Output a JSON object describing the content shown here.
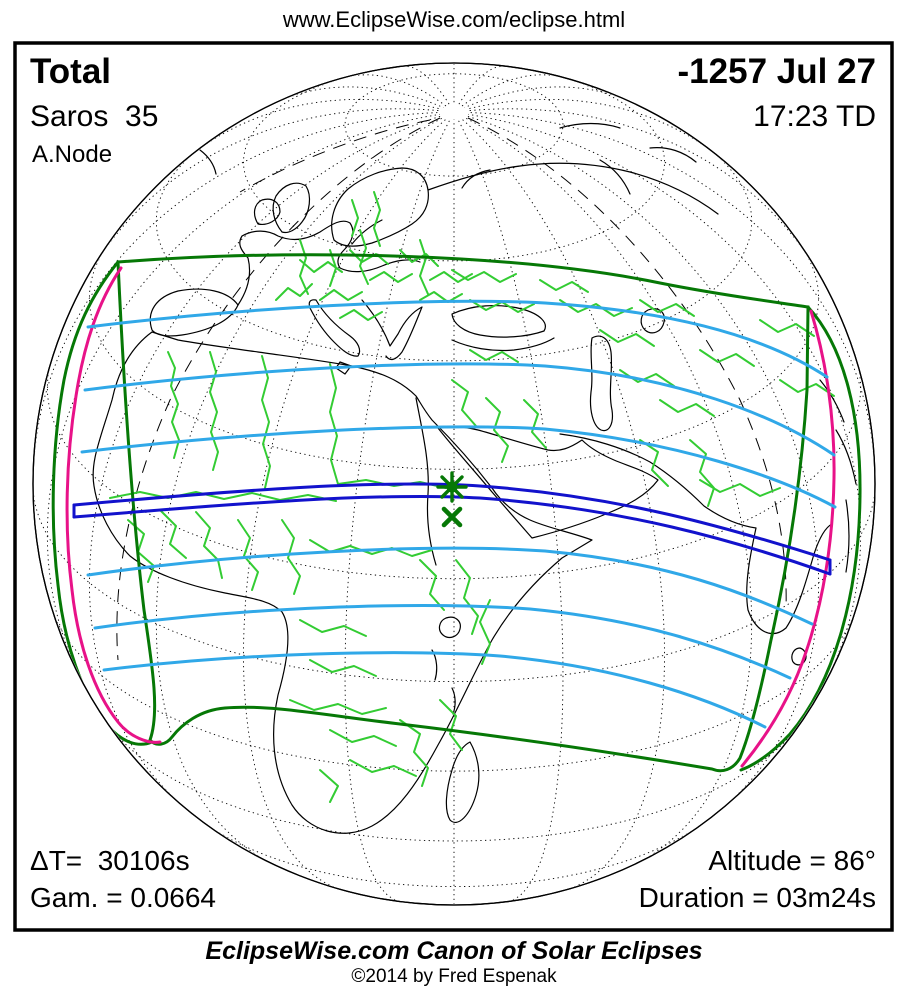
{
  "page": {
    "url_text": "www.EclipseWise.com/eclipse.html"
  },
  "info": {
    "type": "Total",
    "saros": "Saros  35",
    "node": "A.Node",
    "date": "-1257 Jul 27",
    "time": "17:23 TD",
    "delta_t": "ΔT=  30106s",
    "gamma": "Gam. = 0.0664",
    "altitude": "Altitude = 86°",
    "duration": "Duration = 03m24s"
  },
  "footer": {
    "caption": "EclipseWise.com Canon of Solar Eclipses",
    "copyright": "©2014 by Fred Espenak"
  },
  "map": {
    "description": "Orthographic globe (Africa, Europe, Asia) with total solar eclipse path of -1257 Jul 27",
    "markers": [
      {
        "name": "greatest-eclipse",
        "symbol": "asterisk"
      },
      {
        "name": "greatest-duration",
        "symbol": "x"
      }
    ],
    "colors": {
      "coastline": "#000000",
      "country_border": "#33CC33",
      "eclipse_limit": "#067806",
      "magnitude_curve": "#30A8E8",
      "central_path": "#1212CC",
      "sunrise_sunset": "#E81288",
      "marker": "#067806",
      "graticule": "#000000"
    }
  }
}
